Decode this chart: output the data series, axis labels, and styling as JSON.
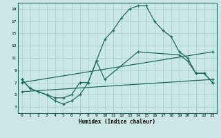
{
  "xlabel": "Humidex (Indice chaleur)",
  "bg_color": "#cce8e5",
  "grid_color": "#aacfcc",
  "line_color": "#1a6b5a",
  "xlim": [
    -0.5,
    23.5
  ],
  "ylim": [
    2,
    20
  ],
  "yticks": [
    3,
    5,
    7,
    9,
    11,
    13,
    15,
    17,
    19
  ],
  "xticks": [
    0,
    1,
    2,
    3,
    4,
    5,
    6,
    7,
    8,
    9,
    10,
    11,
    12,
    13,
    14,
    15,
    16,
    17,
    18,
    19,
    20,
    21,
    22,
    23
  ],
  "series": [
    {
      "x": [
        0,
        1,
        2,
        3,
        4,
        5,
        6,
        7,
        8,
        9,
        10,
        11,
        12,
        13,
        14,
        15,
        16,
        17,
        18,
        19,
        20,
        21,
        22,
        23
      ],
      "y": [
        7.5,
        6,
        5.5,
        5,
        4,
        3.5,
        4,
        5,
        7,
        10.5,
        14,
        15.5,
        17.5,
        19,
        19.5,
        19.5,
        17,
        15.5,
        14.5,
        12,
        11,
        8.5,
        8.5,
        7
      ]
    },
    {
      "x": [
        0,
        1,
        2,
        3,
        4,
        5,
        6,
        7,
        8,
        9,
        10,
        14,
        19,
        20,
        21,
        22,
        23
      ],
      "y": [
        7.5,
        6,
        5.5,
        5,
        4.5,
        4.5,
        5,
        7,
        7,
        10.5,
        7.5,
        12,
        11.5,
        10.5,
        8.5,
        8.5,
        7
      ]
    },
    {
      "x": [
        0,
        23
      ],
      "y": [
        7,
        12
      ]
    },
    {
      "x": [
        0,
        23
      ],
      "y": [
        5.5,
        7.5
      ]
    }
  ]
}
